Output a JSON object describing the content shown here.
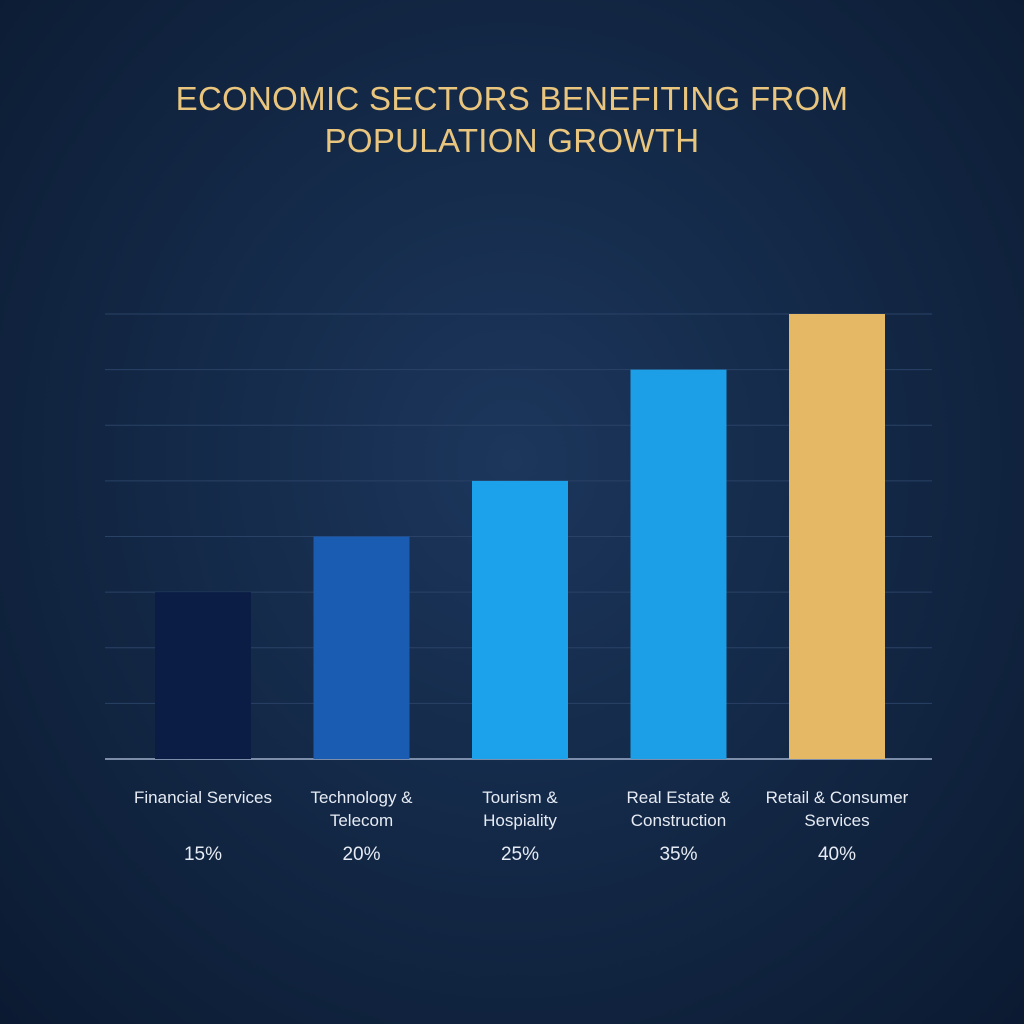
{
  "chart_data": {
    "type": "bar",
    "title": "ECONOMIC SECTORS BENEFITING FROM POPULATION GROWTH",
    "categories": [
      "Financial Services",
      "Technology & Telecom",
      "Tourism & Hospiality",
      "Real Estate & Construction",
      "Retail & Consumer Services"
    ],
    "values": [
      15,
      20,
      25,
      35,
      40
    ],
    "value_labels": [
      "15%",
      "20%",
      "25%",
      "35%",
      "40%"
    ],
    "colors": [
      "#0b1d45",
      "#1a5cb2",
      "#1ba2ea",
      "#1c9fe6",
      "#e5b866"
    ],
    "ylim": [
      0,
      40
    ],
    "yticks": [
      0,
      5,
      10,
      15,
      20,
      25,
      30,
      35,
      40
    ],
    "grid": true
  }
}
